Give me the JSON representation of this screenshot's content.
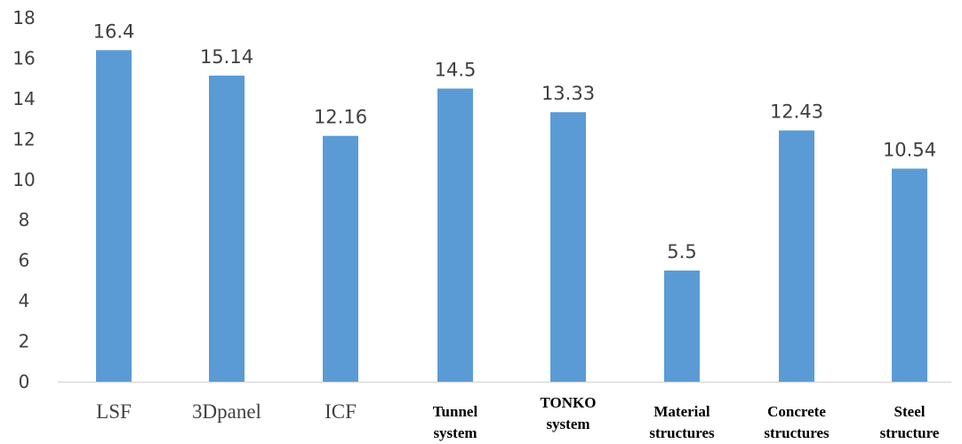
{
  "chart_data": {
    "type": "bar",
    "categories": [
      [
        "LSF"
      ],
      [
        "3Dpanel"
      ],
      [
        "ICF"
      ],
      [
        "Tunnel",
        "system"
      ],
      [
        "TONKO",
        "system"
      ],
      [
        "Material",
        "structures"
      ],
      [
        "Concrete",
        "structures"
      ],
      [
        "Steel",
        "structure"
      ]
    ],
    "values": [
      16.4,
      15.14,
      12.16,
      14.5,
      13.33,
      5.5,
      12.43,
      10.54
    ],
    "data_labels": [
      "16.4",
      "15.14",
      "12.16",
      "14.5",
      "13.33",
      "5.5",
      "12.43",
      "10.54"
    ],
    "yticks": [
      "0",
      "2",
      "4",
      "6",
      "8",
      "10",
      "12",
      "14",
      "16",
      "18"
    ],
    "ylim": [
      0,
      18
    ],
    "title": "",
    "xlabel": "",
    "ylabel": "",
    "grid": false,
    "legend": "none",
    "bar_color": "#5b9bd5",
    "axis_color": "#d9d9d9"
  }
}
